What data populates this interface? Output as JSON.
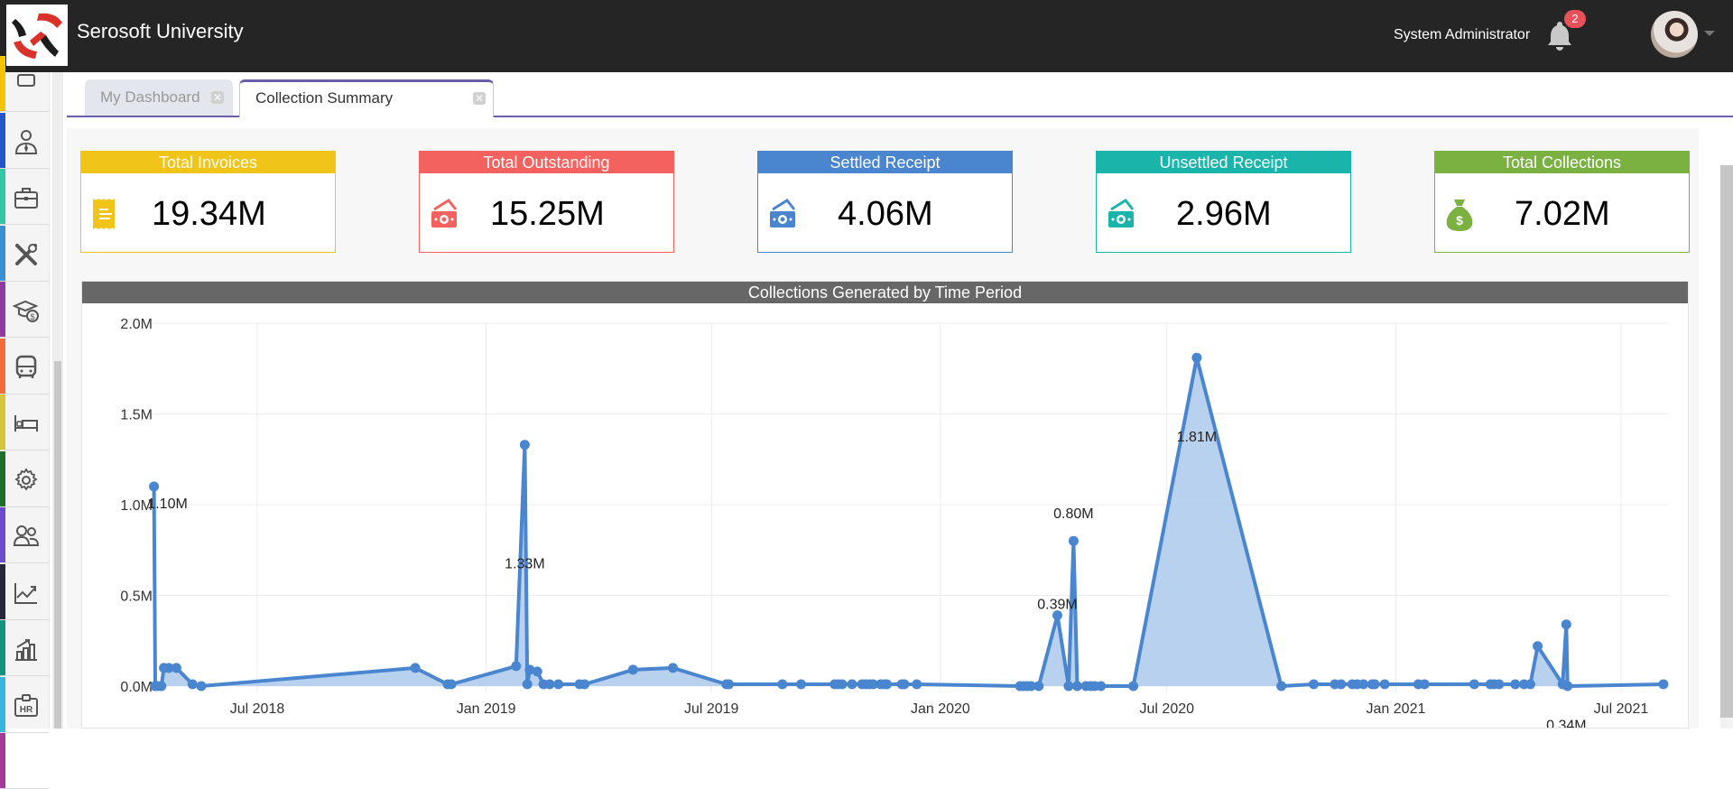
{
  "header": {
    "app_title": "Serosoft University",
    "user_name": "System Administrator",
    "notification_count": "2",
    "logo_icon": "serosoft-logo",
    "bell_icon": "bell-icon",
    "avatar_icon": "user-avatar"
  },
  "sidebar": {
    "items": [
      {
        "icon": "dashboard-icon",
        "color": "#f2c400"
      },
      {
        "icon": "user-tie-icon",
        "color": "#2454c9"
      },
      {
        "icon": "briefcase-icon",
        "color": "#35c4a5"
      },
      {
        "icon": "tools-icon",
        "color": "#3a8fd3"
      },
      {
        "icon": "graduation-fee-icon",
        "color": "#8e3a9e"
      },
      {
        "icon": "bus-icon",
        "color": "#f26b3a"
      },
      {
        "icon": "bed-icon",
        "color": "#d4c53c"
      },
      {
        "icon": "gear-icon",
        "color": "#1e6e2a"
      },
      {
        "icon": "users-icon",
        "color": "#6a4ccc"
      },
      {
        "icon": "line-chart-icon",
        "color": "#25283a"
      },
      {
        "icon": "bar-chart-icon",
        "color": "#13937d"
      },
      {
        "icon": "hr-badge-icon",
        "color": "#3ab4dc"
      },
      {
        "icon": "more-icon",
        "color": "#a23a9a"
      }
    ]
  },
  "tabs": [
    {
      "label": "My Dashboard",
      "active": false
    },
    {
      "label": "Collection Summary",
      "active": true
    }
  ],
  "cards": [
    {
      "title": "Total Invoices",
      "value": "19.34M",
      "color": "#f0c419",
      "icon": "receipt-icon"
    },
    {
      "title": "Total Outstanding",
      "value": "15.25M",
      "color": "#f4625f",
      "icon": "cash-icon"
    },
    {
      "title": "Settled Receipt",
      "value": "4.06M",
      "color": "#4a86cf",
      "icon": "cash-icon"
    },
    {
      "title": "Unsettled Receipt",
      "value": "2.96M",
      "color": "#1ab5aa",
      "icon": "cash-icon"
    },
    {
      "title": "Total Collections",
      "value": "7.02M",
      "color": "#7ab140",
      "icon": "money-bag-icon"
    }
  ],
  "chart_data": {
    "type": "area",
    "title": "Collections Generated by Time Period",
    "xlabel": "",
    "ylabel": "",
    "x_ticks": [
      "Jul 2018",
      "Jan 2019",
      "Jul 2019",
      "Jan 2020",
      "Jul 2020",
      "Jan 2021",
      "Jul 2021"
    ],
    "x_tick_dates": [
      "2018-07-01",
      "2019-01-01",
      "2019-07-01",
      "2020-01-01",
      "2020-07-01",
      "2021-01-01",
      "2021-07-01"
    ],
    "y_ticks": [
      "0.0M",
      "0.5M",
      "1.0M",
      "1.5M",
      "2.0M"
    ],
    "ylim": [
      0,
      2.0
    ],
    "xlim": [
      "2018-03-15",
      "2021-07-25"
    ],
    "unit": "M",
    "grid": true,
    "line_color": "#4a86cf",
    "fill_color": "#b4cfee",
    "series": [
      {
        "name": "Collections",
        "points": [
          [
            "2018-04-09",
            1.1
          ],
          [
            "2018-04-10",
            0.0
          ],
          [
            "2018-04-12",
            0.0
          ],
          [
            "2018-04-15",
            0.0
          ],
          [
            "2018-04-17",
            0.1
          ],
          [
            "2018-04-21",
            0.1
          ],
          [
            "2018-04-27",
            0.1
          ],
          [
            "2018-05-10",
            0.01
          ],
          [
            "2018-05-17",
            0.0
          ],
          [
            "2018-11-05",
            0.1
          ],
          [
            "2018-12-01",
            0.01
          ],
          [
            "2018-12-04",
            0.01
          ],
          [
            "2019-01-25",
            0.11
          ],
          [
            "2019-02-01",
            1.33
          ],
          [
            "2019-02-03",
            0.01
          ],
          [
            "2019-02-05",
            0.09
          ],
          [
            "2019-02-11",
            0.08
          ],
          [
            "2019-02-16",
            0.01
          ],
          [
            "2019-02-21",
            0.01
          ],
          [
            "2019-02-28",
            0.01
          ],
          [
            "2019-03-17",
            0.01
          ],
          [
            "2019-03-21",
            0.01
          ],
          [
            "2019-04-29",
            0.09
          ],
          [
            "2019-05-31",
            0.1
          ],
          [
            "2019-07-13",
            0.01
          ],
          [
            "2019-07-15",
            0.01
          ],
          [
            "2019-08-27",
            0.01
          ],
          [
            "2019-09-11",
            0.01
          ],
          [
            "2019-10-08",
            0.01
          ],
          [
            "2019-10-11",
            0.01
          ],
          [
            "2019-10-14",
            0.01
          ],
          [
            "2019-10-22",
            0.01
          ],
          [
            "2019-10-30",
            0.01
          ],
          [
            "2019-11-02",
            0.01
          ],
          [
            "2019-11-05",
            0.01
          ],
          [
            "2019-11-08",
            0.01
          ],
          [
            "2019-11-14",
            0.01
          ],
          [
            "2019-11-17",
            0.01
          ],
          [
            "2019-11-19",
            0.01
          ],
          [
            "2019-12-01",
            0.01
          ],
          [
            "2019-12-03",
            0.01
          ],
          [
            "2019-12-13",
            0.01
          ],
          [
            "2020-03-05",
            0.0
          ],
          [
            "2020-03-08",
            0.0
          ],
          [
            "2020-03-11",
            0.0
          ],
          [
            "2020-03-14",
            0.0
          ],
          [
            "2020-03-20",
            0.0
          ],
          [
            "2020-04-04",
            0.39
          ],
          [
            "2020-04-13",
            0.0
          ],
          [
            "2020-04-17",
            0.8
          ],
          [
            "2020-04-20",
            0.0
          ],
          [
            "2020-04-27",
            0.0
          ],
          [
            "2020-05-01",
            0.0
          ],
          [
            "2020-05-04",
            0.0
          ],
          [
            "2020-05-09",
            0.0
          ],
          [
            "2020-06-04",
            0.0
          ],
          [
            "2020-07-25",
            1.81
          ],
          [
            "2020-10-01",
            0.0
          ],
          [
            "2020-10-27",
            0.01
          ],
          [
            "2020-11-13",
            0.01
          ],
          [
            "2020-11-18",
            0.01
          ],
          [
            "2020-11-27",
            0.01
          ],
          [
            "2020-12-01",
            0.01
          ],
          [
            "2020-12-06",
            0.01
          ],
          [
            "2020-12-13",
            0.01
          ],
          [
            "2020-12-15",
            0.01
          ],
          [
            "2020-12-23",
            0.01
          ],
          [
            "2021-01-19",
            0.01
          ],
          [
            "2021-01-24",
            0.01
          ],
          [
            "2021-03-05",
            0.01
          ],
          [
            "2021-03-18",
            0.01
          ],
          [
            "2021-03-21",
            0.01
          ],
          [
            "2021-03-25",
            0.01
          ],
          [
            "2021-04-07",
            0.01
          ],
          [
            "2021-04-14",
            0.01
          ],
          [
            "2021-04-19",
            0.01
          ],
          [
            "2021-04-25",
            0.22
          ],
          [
            "2021-05-15",
            0.01
          ],
          [
            "2021-05-18",
            0.34
          ],
          [
            "2021-05-19",
            0.0
          ],
          [
            "2021-08-04",
            0.01
          ]
        ]
      }
    ],
    "data_labels": [
      {
        "date": "2018-04-09",
        "value": 1.1,
        "text": "1.10M"
      },
      {
        "date": "2019-02-01",
        "value": 1.33,
        "text": "1.33M"
      },
      {
        "date": "2020-04-04",
        "value": 0.39,
        "text": "0.39M"
      },
      {
        "date": "2020-04-17",
        "value": 0.8,
        "text": "0.80M"
      },
      {
        "date": "2020-07-25",
        "value": 1.81,
        "text": "1.81M"
      },
      {
        "date": "2021-05-18",
        "value": 0.34,
        "text": "0.34M"
      }
    ]
  }
}
